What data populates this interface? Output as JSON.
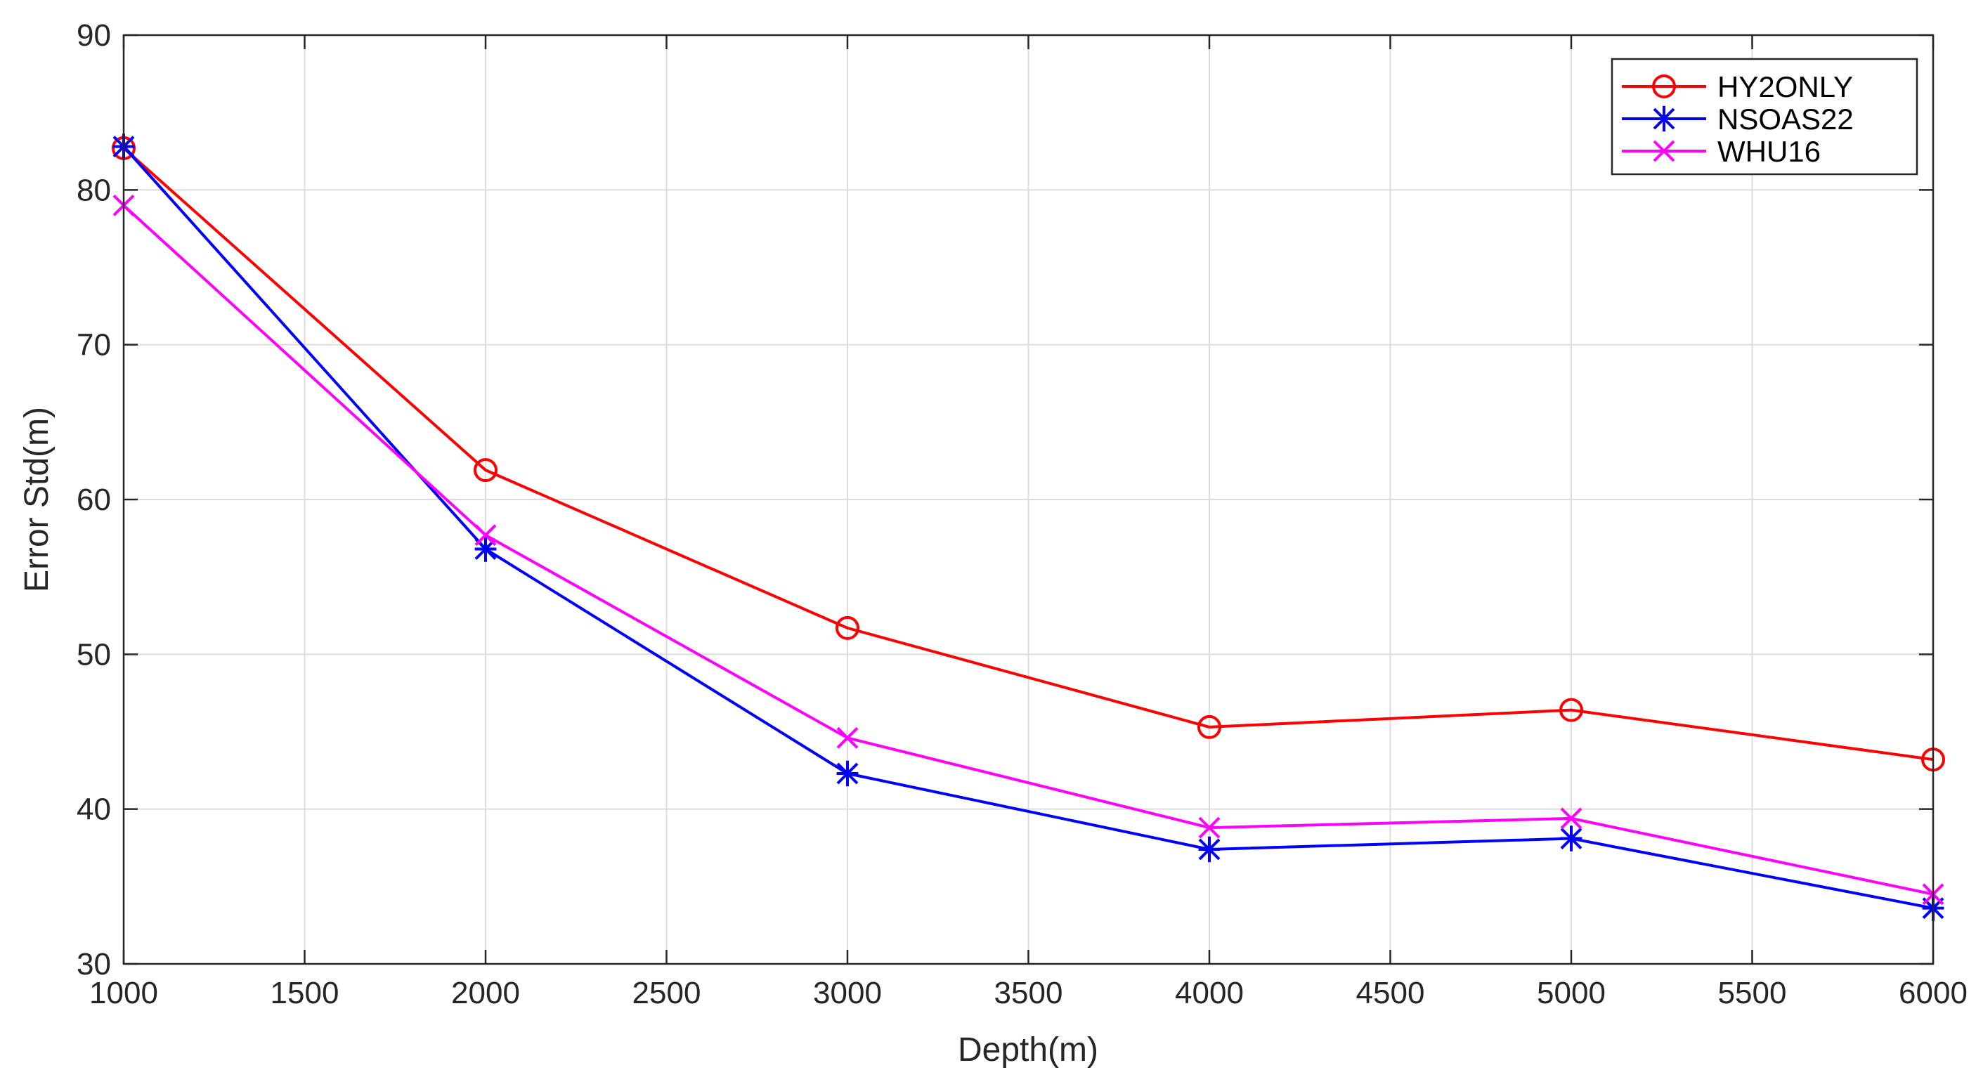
{
  "chart_data": {
    "type": "line",
    "title": "",
    "xlabel": "Depth(m)",
    "ylabel": "Error Std(m)",
    "xlim": [
      1000,
      6000
    ],
    "ylim": [
      30,
      90
    ],
    "xticks": [
      1000,
      1500,
      2000,
      2500,
      3000,
      3500,
      4000,
      4500,
      5000,
      5500,
      6000
    ],
    "yticks": [
      30,
      40,
      50,
      60,
      70,
      80,
      90
    ],
    "grid": true,
    "legend_position": "top-right",
    "x": [
      1000,
      2000,
      3000,
      4000,
      5000,
      6000
    ],
    "series": [
      {
        "name": "HY2ONLY",
        "color": "#ff0000",
        "marker": "circle",
        "values": [
          82.7,
          61.9,
          51.7,
          45.3,
          46.4,
          43.2
        ]
      },
      {
        "name": "NSOAS22",
        "color": "#0000ff",
        "marker": "asterisk",
        "values": [
          82.8,
          56.8,
          42.3,
          37.4,
          38.1,
          33.6
        ]
      },
      {
        "name": "WHU16",
        "color": "#ff00ff",
        "marker": "x",
        "values": [
          79.0,
          57.7,
          44.6,
          38.8,
          39.4,
          34.5
        ]
      }
    ]
  }
}
